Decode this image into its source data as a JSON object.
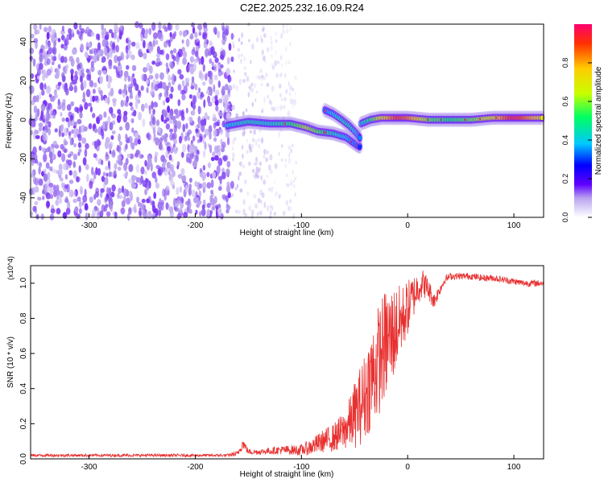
{
  "title": "C2E2.2025.232.16.09.R24",
  "chart_data": [
    {
      "type": "heatmap",
      "title": "",
      "xlabel": "Height of straight line (km)",
      "ylabel": "Frequency (Hz)",
      "xlim": [
        -355,
        128
      ],
      "ylim": [
        -50,
        49
      ],
      "xticks": [
        -300,
        -200,
        -100,
        0,
        100
      ],
      "yticks": [
        -40,
        -20,
        0,
        20,
        40
      ],
      "colorbar": {
        "label": "Normalized spectral amplitude",
        "range": [
          0,
          1
        ],
        "ticks": [
          0.0,
          0.2,
          0.4,
          0.6,
          0.8
        ],
        "colors": [
          "#ffffff",
          "#9f7fe8",
          "#6000ff",
          "#0000ff",
          "#00c8ff",
          "#00ff60",
          "#c8ff00",
          "#ffcc00",
          "#ff4000",
          "#ff0060"
        ]
      },
      "noise_region": {
        "x": [
          -355,
          -165
        ],
        "y": [
          -50,
          49
        ],
        "amplitude": 0.12
      },
      "sparse_region": {
        "x": [
          -165,
          -105
        ],
        "y": [
          -50,
          49
        ],
        "amplitude": 0.06
      },
      "ridges": [
        {
          "name": "",
          "points": [
            [
              -170,
              -3
            ],
            [
              -150,
              -1
            ],
            [
              -130,
              -2
            ],
            [
              -110,
              -2
            ],
            [
              -95,
              -4
            ],
            [
              -85,
              -6
            ],
            [
              -70,
              -7
            ],
            [
              -58,
              -9
            ],
            [
              -48,
              -13
            ],
            [
              -44,
              -14
            ]
          ],
          "amplitude": [
            0.45,
            0.5,
            0.48,
            0.55,
            0.65,
            0.6,
            0.5,
            0.45,
            0.4,
            0.35
          ]
        },
        {
          "name": "",
          "points": [
            [
              -78,
              5
            ],
            [
              -70,
              3
            ],
            [
              -62,
              0
            ],
            [
              -55,
              -3
            ],
            [
              -48,
              -7
            ],
            [
              -44,
              -10
            ]
          ],
          "amplitude": [
            0.4,
            0.45,
            0.5,
            0.5,
            0.45,
            0.4
          ]
        },
        {
          "name": "",
          "points": [
            [
              -44,
              -2
            ],
            [
              -35,
              0
            ],
            [
              -25,
              1
            ],
            [
              -10,
              1
            ],
            [
              0,
              1
            ],
            [
              20,
              0
            ],
            [
              40,
              0
            ],
            [
              60,
              0
            ],
            [
              80,
              1
            ],
            [
              100,
              1
            ],
            [
              128,
              1
            ]
          ],
          "amplitude": [
            0.45,
            0.55,
            0.7,
            0.9,
            0.85,
            0.6,
            0.55,
            0.6,
            0.7,
            0.95,
            0.7
          ]
        }
      ]
    },
    {
      "type": "line",
      "title": "",
      "xlabel": "Height of straight line (km)",
      "ylabel": "SNR (10 * v/v)",
      "y_multiplier": "(x10^4)",
      "xlim": [
        -355,
        128
      ],
      "ylim": [
        0,
        1.1
      ],
      "xticks": [
        -300,
        -200,
        -100,
        0,
        100
      ],
      "yticks": [
        0.0,
        0.2,
        0.4,
        0.6,
        0.8,
        1.0
      ],
      "series": [
        {
          "name": "",
          "color": "#e83030",
          "x": [
            -355,
            -300,
            -250,
            -200,
            -170,
            -160,
            -155,
            -150,
            -140,
            -120,
            -100,
            -90,
            -80,
            -70,
            -60,
            -55,
            -50,
            -45,
            -40,
            -35,
            -30,
            -25,
            -20,
            -15,
            -10,
            -5,
            0,
            5,
            10,
            15,
            20,
            25,
            30,
            35,
            40,
            50,
            60,
            70,
            80,
            90,
            100,
            110,
            120,
            128
          ],
          "y": [
            0.02,
            0.02,
            0.02,
            0.02,
            0.02,
            0.03,
            0.09,
            0.04,
            0.04,
            0.05,
            0.05,
            0.07,
            0.1,
            0.12,
            0.16,
            0.2,
            0.25,
            0.3,
            0.36,
            0.45,
            0.52,
            0.6,
            0.66,
            0.7,
            0.75,
            0.8,
            0.86,
            0.92,
            0.98,
            1.0,
            0.96,
            0.9,
            0.96,
            1.02,
            1.04,
            1.04,
            1.04,
            1.03,
            1.03,
            1.02,
            1.01,
            1.0,
            1.0,
            1.0
          ],
          "noise": [
            0.005,
            0.005,
            0.005,
            0.005,
            0.005,
            0.01,
            0.02,
            0.01,
            0.01,
            0.015,
            0.02,
            0.03,
            0.04,
            0.05,
            0.07,
            0.09,
            0.12,
            0.14,
            0.16,
            0.18,
            0.2,
            0.2,
            0.2,
            0.18,
            0.15,
            0.12,
            0.1,
            0.08,
            0.06,
            0.05,
            0.04,
            0.03,
            0.02,
            0.015,
            0.012,
            0.012,
            0.012,
            0.012,
            0.012,
            0.012,
            0.012,
            0.012,
            0.012,
            0.012
          ]
        }
      ]
    }
  ]
}
